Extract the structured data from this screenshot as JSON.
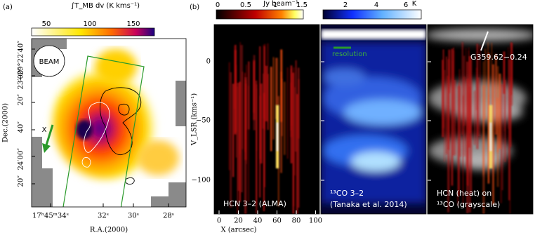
{
  "panel_a": {
    "label": "(a)",
    "colorbar_label": "∫T_MB dv (K kms⁻¹)",
    "colorbar_ticks": [
      "50",
      "100",
      "150"
    ],
    "y_label": "Dec.(2000)",
    "y_ticks": [
      "−29°22′40″",
      "23′00″",
      "20″",
      "40″",
      "24′00″",
      "20″"
    ],
    "x_label": "R.A.(2000)",
    "x_ticks": [
      "17ʰ45ᵐ34ˢ",
      "32ˢ",
      "30ˢ",
      "28ˢ"
    ],
    "beam": "BEAM",
    "marker": "X"
  },
  "panel_b": {
    "label": "(b)",
    "colorbar1_label": "Jy beam⁻¹",
    "colorbar1_ticks": [
      "0",
      "0.5",
      "1",
      "1.5"
    ],
    "colorbar2_label": "K",
    "colorbar2_ticks": [
      "2",
      "4",
      "6"
    ],
    "y_label": "V_LSR (kms⁻¹)",
    "y_ticks": [
      "0",
      "−50",
      "−100"
    ],
    "x_label": "X (arcsec)",
    "x_ticks": [
      "0",
      "20",
      "40",
      "60",
      "80",
      "100"
    ],
    "sub1": "HCN 3–2 (ALMA)",
    "sub2_line1": "¹³CO 3–2",
    "sub2_line2": "(Tanaka et al. 2014)",
    "sub2_note": "resolution",
    "sub3_line1": "HCN (heat) on",
    "sub3_line2": "¹³CO (grayscale)",
    "sub3_source": "G359.62−0.24"
  }
}
